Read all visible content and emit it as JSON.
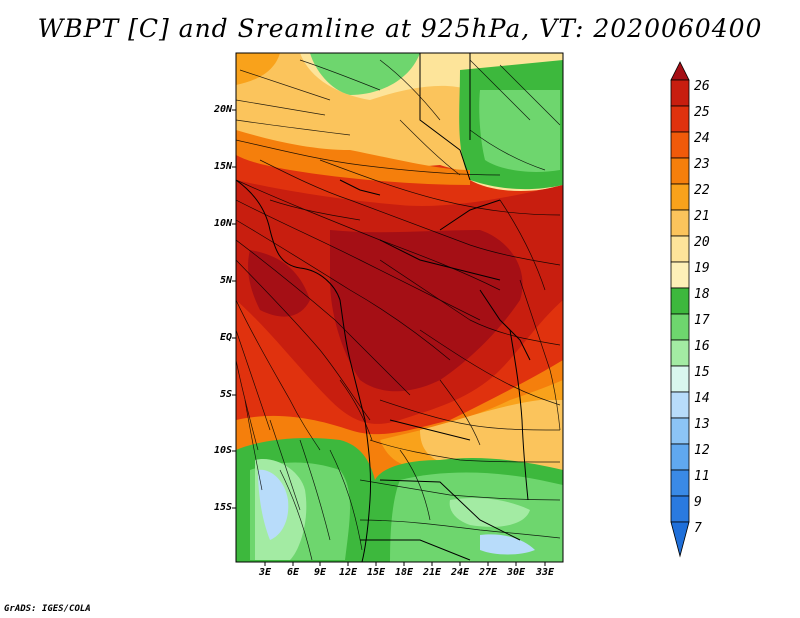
{
  "title": "WBPT [C] and Sreamline at 925hPa, VT: 2020060400",
  "credit": "GrADS: IGES/COLA",
  "map": {
    "lat_labels": [
      "20N",
      "15N",
      "10N",
      "5N",
      "EQ",
      "5S",
      "10S",
      "15S"
    ],
    "lon_labels": [
      "3E",
      "6E",
      "9E",
      "12E",
      "15E",
      "18E",
      "21E",
      "24E",
      "27E",
      "30E",
      "33E"
    ]
  },
  "colorbar": {
    "labels": [
      "26",
      "25",
      "24",
      "23",
      "22",
      "21",
      "20",
      "19",
      "18",
      "17",
      "16",
      "15",
      "14",
      "13",
      "12",
      "11",
      "9",
      "7"
    ],
    "colors": [
      "#a50f15",
      "#c81e0f",
      "#e0320e",
      "#f05a0a",
      "#f57f0c",
      "#f9a21b",
      "#fbc45c",
      "#fde49a",
      "#3db83d",
      "#6ed66e",
      "#a3eba3",
      "#d9f7ee",
      "#b8dcfa",
      "#8cc4f5",
      "#60a8ef",
      "#3a8ae6",
      "#1f6fd9"
    ]
  }
}
